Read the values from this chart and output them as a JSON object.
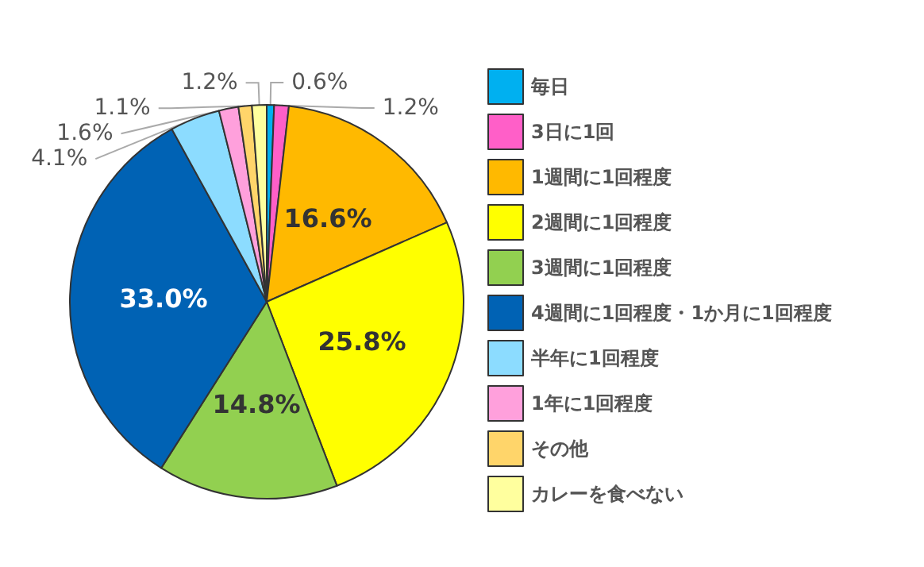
{
  "chart_data": {
    "type": "pie",
    "categories": [
      "毎日",
      "3日に1回",
      "1週間に1回程度",
      "2週間に1回程度",
      "3週間に1回程度",
      "4週間に1回程度・1か月に1回程度",
      "半年に1回程度",
      "1年に1回程度",
      "その他",
      "カレーを食べない"
    ],
    "values": [
      0.6,
      1.2,
      16.6,
      25.8,
      14.8,
      33.0,
      4.1,
      1.6,
      1.1,
      1.2
    ],
    "colors": [
      "#00b0f0",
      "#ff5fc8",
      "#ffb900",
      "#ffff00",
      "#92d050",
      "#0062b4",
      "#8cdcff",
      "#ffa0dc",
      "#ffd56a",
      "#ffff9e"
    ],
    "value_labels": [
      "0.6%",
      "1.2%",
      "16.6%",
      "25.8%",
      "14.8%",
      "33.0%",
      "4.1%",
      "1.6%",
      "1.1%",
      "1.2%"
    ],
    "legend": "right"
  }
}
